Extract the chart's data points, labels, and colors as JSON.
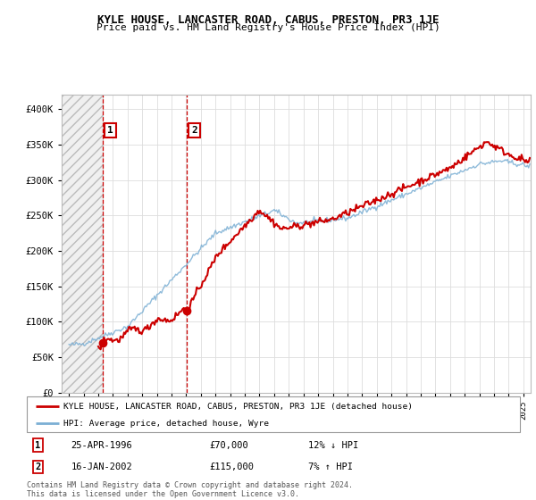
{
  "title": "KYLE HOUSE, LANCASTER ROAD, CABUS, PRESTON, PR3 1JE",
  "subtitle": "Price paid vs. HM Land Registry's House Price Index (HPI)",
  "legend_line1": "KYLE HOUSE, LANCASTER ROAD, CABUS, PRESTON, PR3 1JE (detached house)",
  "legend_line2": "HPI: Average price, detached house, Wyre",
  "transaction1_label": "1",
  "transaction1_date": "25-APR-1996",
  "transaction1_price": "£70,000",
  "transaction1_hpi": "12% ↓ HPI",
  "transaction2_label": "2",
  "transaction2_date": "16-JAN-2002",
  "transaction2_price": "£115,000",
  "transaction2_hpi": "7% ↑ HPI",
  "footer": "Contains HM Land Registry data © Crown copyright and database right 2024.\nThis data is licensed under the Open Government Licence v3.0.",
  "price_color": "#cc0000",
  "hpi_color": "#7bafd4",
  "grid_color": "#dddddd",
  "sale1_x": 1996.32,
  "sale1_y": 70000,
  "sale2_x": 2002.04,
  "sale2_y": 115000,
  "ylim": [
    0,
    420000
  ],
  "xlim": [
    1993.5,
    2025.5
  ]
}
